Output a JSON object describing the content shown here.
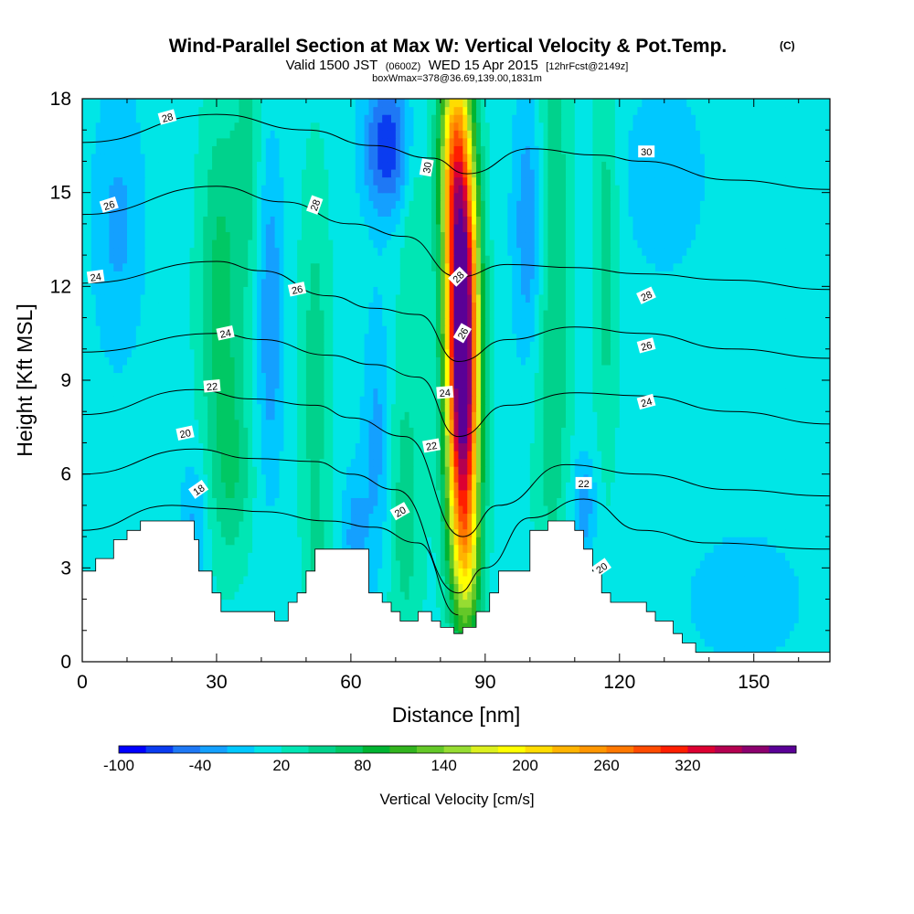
{
  "title": {
    "main": "Wind-Parallel Section at Max W: Vertical Velocity & Pot.Temp.",
    "main_mark": "(C)",
    "valid_prefix": "Valid 1500 JST",
    "valid_small1": "(0600Z)",
    "valid_mid": "WED 15 Apr 2015",
    "valid_small2": "[12hrFcst@2149z]",
    "box": "boxWmax=378@36.69,139.00,1831m"
  },
  "chart_data": {
    "type": "heatmap",
    "xlabel": "Distance [nm]",
    "ylabel": "Height [Kft MSL]",
    "xlim": [
      0,
      167
    ],
    "ylim": [
      0,
      18
    ],
    "x_ticks": [
      0,
      30,
      60,
      90,
      120,
      150
    ],
    "y_ticks": [
      0,
      3,
      6,
      9,
      12,
      15,
      18
    ],
    "colorbar": {
      "title": "Vertical Velocity [cm/s]",
      "labels": [
        "-100",
        "-40",
        "20",
        "80",
        "140",
        "200",
        "260",
        "320"
      ],
      "levels_min": -100,
      "levels_step": 20,
      "colors": [
        "#0000ff",
        "#0a3cf0",
        "#1e78f5",
        "#14a0ff",
        "#00c8ff",
        "#00e6e6",
        "#00e6b4",
        "#00d28c",
        "#00c864",
        "#00b432",
        "#32b41e",
        "#64c828",
        "#96dc32",
        "#dcf01e",
        "#ffff00",
        "#ffdc00",
        "#ffb400",
        "#ff9600",
        "#ff7800",
        "#ff4b00",
        "#ff1e00",
        "#dc0032",
        "#b40050",
        "#8c006e",
        "#5a0096"
      ]
    },
    "terrain_kft": [
      [
        0,
        2.9
      ],
      [
        3,
        3.3
      ],
      [
        7,
        3.9
      ],
      [
        10,
        4.2
      ],
      [
        13,
        4.5
      ],
      [
        22,
        4.5
      ],
      [
        25,
        3.9
      ],
      [
        26,
        2.9
      ],
      [
        29,
        2.2
      ],
      [
        31,
        1.6
      ],
      [
        42,
        1.6
      ],
      [
        43,
        1.3
      ],
      [
        45,
        1.3
      ],
      [
        46,
        1.9
      ],
      [
        48,
        2.2
      ],
      [
        50,
        2.9
      ],
      [
        52,
        3.6
      ],
      [
        61,
        3.6
      ],
      [
        64,
        2.2
      ],
      [
        67,
        1.9
      ],
      [
        69,
        1.6
      ],
      [
        71,
        1.3
      ],
      [
        74,
        1.3
      ],
      [
        75,
        1.6
      ],
      [
        78,
        1.3
      ],
      [
        80,
        1.1
      ],
      [
        83,
        0.9
      ],
      [
        85,
        1.1
      ],
      [
        88,
        1.6
      ],
      [
        91,
        2.2
      ],
      [
        93,
        2.9
      ],
      [
        100,
        4.2
      ],
      [
        104,
        4.5
      ],
      [
        108,
        4.5
      ],
      [
        110,
        4.2
      ],
      [
        112,
        3.6
      ],
      [
        114,
        2.9
      ],
      [
        116,
        2.2
      ],
      [
        118,
        1.9
      ],
      [
        120,
        1.9
      ],
      [
        123,
        1.9
      ],
      [
        126,
        1.6
      ],
      [
        128,
        1.3
      ],
      [
        132,
        0.9
      ],
      [
        134,
        0.6
      ],
      [
        137,
        0.3
      ],
      [
        150,
        0.3
      ],
      [
        167,
        0.3
      ]
    ],
    "velocity_features": [
      {
        "x": 85,
        "y": 10.0,
        "sx": 2.5,
        "sy": 3.8,
        "w": 340
      },
      {
        "x": 85,
        "y": 6.0,
        "sx": 2.6,
        "sy": 3.0,
        "w": 120
      },
      {
        "x": 84,
        "y": 14.0,
        "sx": 2.6,
        "sy": 3.0,
        "w": 160
      },
      {
        "x": 83,
        "y": 17.0,
        "sx": 2.4,
        "sy": 2.2,
        "w": 120
      },
      {
        "x": 86,
        "y": 3.0,
        "sx": 2.2,
        "sy": 1.8,
        "w": 80
      },
      {
        "x": 31,
        "y": 11.5,
        "sx": 3.5,
        "sy": 4.5,
        "w": 60
      },
      {
        "x": 34,
        "y": 6.0,
        "sx": 3.0,
        "sy": 2.0,
        "w": 35
      },
      {
        "x": 37,
        "y": 16.0,
        "sx": 2.0,
        "sy": 3.0,
        "w": 35
      },
      {
        "x": 52,
        "y": 9.0,
        "sx": 2.5,
        "sy": 5.0,
        "w": 40
      },
      {
        "x": 105,
        "y": 12.0,
        "sx": 3.0,
        "sy": 8.0,
        "w": 50
      },
      {
        "x": 117,
        "y": 13.0,
        "sx": 2.0,
        "sy": 5.0,
        "w": 40
      },
      {
        "x": 72,
        "y": 5.0,
        "sx": 3.0,
        "sy": 4.0,
        "w": 40
      },
      {
        "x": 74,
        "y": 14.0,
        "sx": 2.0,
        "sy": 2.5,
        "w": 25
      },
      {
        "x": 53,
        "y": 2.5,
        "sx": 2.0,
        "sy": 1.5,
        "w": 20
      },
      {
        "x": 68,
        "y": 16.5,
        "sx": 3.5,
        "sy": 1.5,
        "w": -90
      },
      {
        "x": 66,
        "y": 7.0,
        "sx": 2.2,
        "sy": 3.0,
        "w": -40
      },
      {
        "x": 42,
        "y": 11.0,
        "sx": 2.0,
        "sy": 3.5,
        "w": -50
      },
      {
        "x": 25,
        "y": 4.5,
        "sx": 2.0,
        "sy": 1.5,
        "w": -35
      },
      {
        "x": 100,
        "y": 14.0,
        "sx": 2.5,
        "sy": 3.0,
        "w": -55
      },
      {
        "x": 112,
        "y": 5.0,
        "sx": 2.0,
        "sy": 1.2,
        "w": -45
      },
      {
        "x": 61,
        "y": 4.0,
        "sx": 2.0,
        "sy": 1.5,
        "w": -40
      },
      {
        "x": 8,
        "y": 14.0,
        "sx": 4.0,
        "sy": 3.0,
        "w": -35
      },
      {
        "x": 130,
        "y": 15.5,
        "sx": 6.0,
        "sy": 2.0,
        "w": -30
      },
      {
        "x": 148,
        "y": 2.0,
        "sx": 9.0,
        "sy": 1.5,
        "w": -25
      }
    ],
    "velocity_background": 10,
    "theta_contours": [
      {
        "label": "18",
        "pts": [
          [
            0,
            4.2
          ],
          [
            20,
            5.0
          ],
          [
            30,
            4.9
          ],
          [
            40,
            4.8
          ],
          [
            55,
            4.5
          ],
          [
            65,
            4.3
          ],
          [
            75,
            3.8
          ],
          [
            84,
            1.5
          ]
        ]
      },
      {
        "label": "20",
        "pts": [
          [
            0,
            6.0
          ],
          [
            25,
            6.8
          ],
          [
            38,
            6.5
          ],
          [
            52,
            6.4
          ],
          [
            60,
            6.0
          ],
          [
            70,
            5.5
          ],
          [
            84,
            2.2
          ],
          [
            90,
            3.0
          ],
          [
            100,
            4.6
          ],
          [
            112,
            5.2
          ],
          [
            125,
            4.2
          ],
          [
            140,
            3.8
          ],
          [
            167,
            3.6
          ]
        ]
      },
      {
        "label": "22",
        "pts": [
          [
            0,
            7.9
          ],
          [
            25,
            8.7
          ],
          [
            38,
            8.4
          ],
          [
            52,
            8.2
          ],
          [
            60,
            7.8
          ],
          [
            72,
            7.2
          ],
          [
            85,
            4.0
          ],
          [
            93,
            5.0
          ],
          [
            108,
            6.3
          ],
          [
            125,
            6.0
          ],
          [
            145,
            5.5
          ],
          [
            167,
            5.3
          ]
        ]
      },
      {
        "label": "24",
        "pts": [
          [
            0,
            9.9
          ],
          [
            30,
            10.5
          ],
          [
            40,
            10.3
          ],
          [
            55,
            9.8
          ],
          [
            65,
            9.5
          ],
          [
            75,
            9.1
          ],
          [
            84,
            7.2
          ],
          [
            95,
            8.2
          ],
          [
            110,
            8.6
          ],
          [
            125,
            8.5
          ],
          [
            145,
            8.0
          ],
          [
            167,
            7.6
          ]
        ]
      },
      {
        "label": "26",
        "pts": [
          [
            0,
            12.1
          ],
          [
            30,
            12.8
          ],
          [
            40,
            12.5
          ],
          [
            55,
            11.7
          ],
          [
            65,
            11.3
          ],
          [
            75,
            11.1
          ],
          [
            84,
            9.6
          ],
          [
            95,
            10.3
          ],
          [
            110,
            10.7
          ],
          [
            125,
            10.5
          ],
          [
            145,
            10.0
          ],
          [
            167,
            9.7
          ]
        ]
      },
      {
        "label": "28",
        "pts": [
          [
            0,
            14.3
          ],
          [
            30,
            15.2
          ],
          [
            45,
            14.7
          ],
          [
            60,
            14.0
          ],
          [
            72,
            13.6
          ],
          [
            84,
            12.3
          ],
          [
            95,
            12.7
          ],
          [
            110,
            12.6
          ],
          [
            125,
            12.4
          ],
          [
            145,
            12.2
          ],
          [
            167,
            11.9
          ]
        ]
      },
      {
        "label": "30",
        "pts": [
          [
            0,
            16.6
          ],
          [
            30,
            17.5
          ],
          [
            50,
            17.0
          ],
          [
            65,
            16.5
          ],
          [
            78,
            16.1
          ],
          [
            86,
            15.6
          ],
          [
            100,
            16.4
          ],
          [
            115,
            16.2
          ],
          [
            125,
            16.0
          ],
          [
            145,
            15.4
          ],
          [
            167,
            15.1
          ]
        ]
      }
    ],
    "theta_labels": [
      {
        "text": "28",
        "x": 19,
        "y": 17.4,
        "angle": -15
      },
      {
        "text": "26",
        "x": 6,
        "y": 14.6,
        "angle": -18
      },
      {
        "text": "24",
        "x": 3,
        "y": 12.3,
        "angle": -8
      },
      {
        "text": "24",
        "x": 32,
        "y": 10.5,
        "angle": -12
      },
      {
        "text": "22",
        "x": 29,
        "y": 8.8,
        "angle": -5
      },
      {
        "text": "20",
        "x": 23,
        "y": 7.3,
        "angle": -12
      },
      {
        "text": "18",
        "x": 26,
        "y": 5.5,
        "angle": -35
      },
      {
        "text": "26",
        "x": 48,
        "y": 11.9,
        "angle": -12
      },
      {
        "text": "28",
        "x": 52,
        "y": 14.6,
        "angle": -70
      },
      {
        "text": "30",
        "x": 77,
        "y": 15.8,
        "angle": -80
      },
      {
        "text": "20",
        "x": 71,
        "y": 4.8,
        "angle": -30
      },
      {
        "text": "22",
        "x": 78,
        "y": 6.9,
        "angle": -10
      },
      {
        "text": "24",
        "x": 81,
        "y": 8.6,
        "angle": -5
      },
      {
        "text": "26",
        "x": 85,
        "y": 10.5,
        "angle": -60
      },
      {
        "text": "28",
        "x": 84,
        "y": 12.3,
        "angle": -45
      },
      {
        "text": "22",
        "x": 112,
        "y": 5.7,
        "angle": 0
      },
      {
        "text": "20",
        "x": 116,
        "y": 3.0,
        "angle": -35
      },
      {
        "text": "24",
        "x": 126,
        "y": 8.3,
        "angle": -15
      },
      {
        "text": "26",
        "x": 126,
        "y": 10.1,
        "angle": -15
      },
      {
        "text": "28",
        "x": 126,
        "y": 11.7,
        "angle": -25
      },
      {
        "text": "30",
        "x": 126,
        "y": 16.3,
        "angle": 0
      }
    ]
  }
}
